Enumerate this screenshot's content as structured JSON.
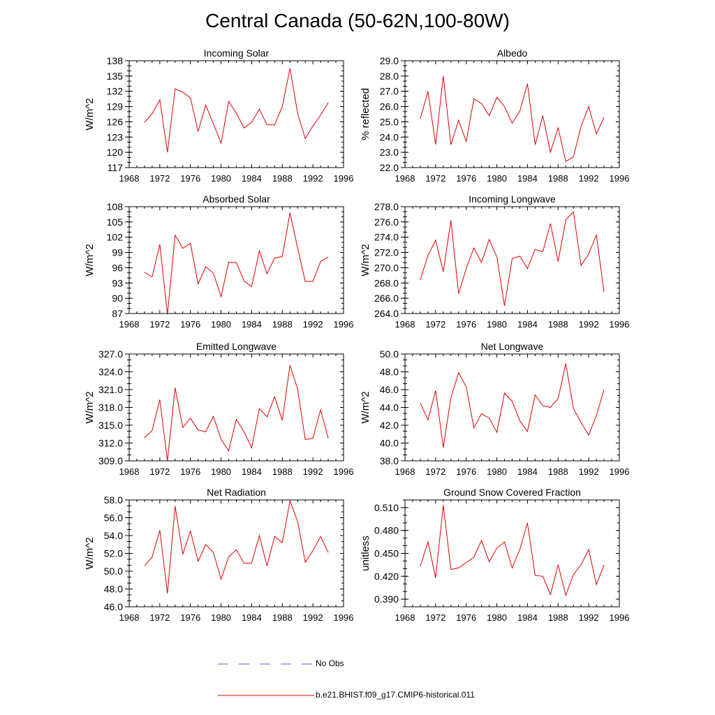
{
  "title": "Central Canada (50-62N,100-80W)",
  "legend": [
    {
      "label": "No Obs",
      "color": "#5a5ad8",
      "style": "dashed"
    },
    {
      "label": "b.e21.BHIST.f09_g17.CMIP6-historical.011",
      "color": "#e00000",
      "style": "solid"
    }
  ],
  "chart_data": [
    {
      "type": "line",
      "title": "Incoming Solar",
      "ylabel": "W/m^2",
      "xlim": [
        1968,
        1996
      ],
      "xticks": [
        "1968",
        "1972",
        "1976",
        "1980",
        "1984",
        "1988",
        "1992",
        "1996"
      ],
      "ylim": [
        117,
        138
      ],
      "yticks": [
        "117",
        "120",
        "123",
        "126",
        "129",
        "132",
        "135",
        "138"
      ],
      "series": [
        {
          "color": "#e00000",
          "x": [
            1970,
            1971,
            1972,
            1973,
            1974,
            1975,
            1976,
            1977,
            1978,
            1979,
            1980,
            1981,
            1982,
            1983,
            1984,
            1985,
            1986,
            1987,
            1988,
            1989,
            1990,
            1991,
            1992,
            1993,
            1994
          ],
          "y": [
            125.9,
            127.6,
            130.3,
            120.0,
            132.5,
            131.8,
            130.7,
            124.1,
            129.3,
            125.6,
            121.8,
            130.0,
            127.7,
            124.8,
            125.9,
            128.5,
            125.4,
            125.4,
            129.0,
            136.5,
            127.7,
            122.7,
            125.2,
            127.3,
            129.8
          ]
        }
      ]
    },
    {
      "type": "line",
      "title": "Albedo",
      "ylabel": "% reflected",
      "xlim": [
        1968,
        1996
      ],
      "xticks": [
        "1968",
        "1972",
        "1976",
        "1980",
        "1984",
        "1988",
        "1992",
        "1996"
      ],
      "ylim": [
        22.0,
        29.0
      ],
      "yticks": [
        "22.0",
        "23.0",
        "24.0",
        "25.0",
        "26.0",
        "27.0",
        "28.0",
        "29.0"
      ],
      "series": [
        {
          "color": "#e00000",
          "x": [
            1970,
            1971,
            1972,
            1973,
            1974,
            1975,
            1976,
            1977,
            1978,
            1979,
            1980,
            1981,
            1982,
            1983,
            1984,
            1985,
            1986,
            1987,
            1988,
            1989,
            1990,
            1991,
            1992,
            1993,
            1994
          ],
          "y": [
            25.2,
            27.0,
            23.5,
            28.0,
            23.5,
            25.1,
            23.7,
            26.5,
            26.2,
            25.4,
            26.6,
            26.0,
            24.9,
            25.7,
            27.5,
            23.5,
            25.4,
            23.0,
            24.6,
            22.4,
            22.7,
            24.7,
            26.0,
            24.2,
            25.3
          ]
        }
      ]
    },
    {
      "type": "line",
      "title": "Absorbed Solar",
      "ylabel": "W/m^2",
      "xlim": [
        1968,
        1996
      ],
      "xticks": [
        "1968",
        "1972",
        "1976",
        "1980",
        "1984",
        "1988",
        "1992",
        "1996"
      ],
      "ylim": [
        87,
        108
      ],
      "yticks": [
        "87",
        "90",
        "93",
        "96",
        "99",
        "102",
        "105",
        "108"
      ],
      "series": [
        {
          "color": "#e00000",
          "x": [
            1970,
            1971,
            1972,
            1973,
            1974,
            1975,
            1976,
            1977,
            1978,
            1979,
            1980,
            1981,
            1982,
            1983,
            1984,
            1985,
            1986,
            1987,
            1988,
            1989,
            1990,
            1991,
            1992,
            1993,
            1994
          ],
          "y": [
            95.1,
            94.2,
            100.6,
            86.8,
            102.4,
            99.8,
            100.8,
            92.8,
            96.2,
            94.9,
            90.3,
            97.1,
            97.0,
            93.4,
            92.3,
            99.3,
            94.8,
            97.9,
            98.2,
            106.8,
            99.9,
            93.3,
            93.3,
            97.2,
            98.1
          ]
        }
      ]
    },
    {
      "type": "line",
      "title": "Incoming Longwave",
      "ylabel": "W/m^2",
      "xlim": [
        1968,
        1996
      ],
      "xticks": [
        "1968",
        "1972",
        "1976",
        "1980",
        "1984",
        "1988",
        "1992",
        "1996"
      ],
      "ylim": [
        264.0,
        278.0
      ],
      "yticks": [
        "264.0",
        "266.0",
        "268.0",
        "270.0",
        "272.0",
        "274.0",
        "276.0",
        "278.0"
      ],
      "series": [
        {
          "color": "#e00000",
          "x": [
            1970,
            1971,
            1972,
            1973,
            1974,
            1975,
            1976,
            1977,
            1978,
            1979,
            1980,
            1981,
            1982,
            1983,
            1984,
            1985,
            1986,
            1987,
            1988,
            1989,
            1990,
            1991,
            1992,
            1993,
            1994
          ],
          "y": [
            268.4,
            271.6,
            273.6,
            269.5,
            276.2,
            266.6,
            269.9,
            272.6,
            270.7,
            273.7,
            271.4,
            265.0,
            271.2,
            271.5,
            269.9,
            272.4,
            272.1,
            275.8,
            270.8,
            276.3,
            277.3,
            270.3,
            271.8,
            274.3,
            266.8
          ]
        }
      ]
    },
    {
      "type": "line",
      "title": "Emitted Longwave",
      "ylabel": "W/m^2",
      "xlim": [
        1968,
        1996
      ],
      "xticks": [
        "1968",
        "1972",
        "1976",
        "1980",
        "1984",
        "1988",
        "1992",
        "1996"
      ],
      "ylim": [
        309.0,
        327.0
      ],
      "yticks": [
        "309.0",
        "312.0",
        "315.0",
        "318.0",
        "321.0",
        "324.0",
        "327.0"
      ],
      "series": [
        {
          "color": "#e00000",
          "x": [
            1970,
            1971,
            1972,
            1973,
            1974,
            1975,
            1976,
            1977,
            1978,
            1979,
            1980,
            1981,
            1982,
            1983,
            1984,
            1985,
            1986,
            1987,
            1988,
            1989,
            1990,
            1991,
            1992,
            1993,
            1994
          ],
          "y": [
            312.9,
            314.1,
            319.3,
            309.0,
            321.3,
            314.6,
            316.2,
            314.2,
            313.9,
            316.5,
            312.6,
            310.7,
            316.0,
            313.9,
            311.2,
            317.8,
            316.4,
            319.8,
            315.8,
            325.1,
            321.1,
            312.6,
            312.8,
            317.6,
            312.8
          ]
        }
      ]
    },
    {
      "type": "line",
      "title": "Net Longwave",
      "ylabel": "W/m^2",
      "xlim": [
        1968,
        1996
      ],
      "xticks": [
        "1968",
        "1972",
        "1976",
        "1980",
        "1984",
        "1988",
        "1992",
        "1996"
      ],
      "ylim": [
        38.0,
        50.0
      ],
      "yticks": [
        "38.0",
        "40.0",
        "42.0",
        "44.0",
        "46.0",
        "48.0",
        "50.0"
      ],
      "series": [
        {
          "color": "#e00000",
          "x": [
            1970,
            1971,
            1972,
            1973,
            1974,
            1975,
            1976,
            1977,
            1978,
            1979,
            1980,
            1981,
            1982,
            1983,
            1984,
            1985,
            1986,
            1987,
            1988,
            1989,
            1990,
            1991,
            1992,
            1993,
            1994
          ],
          "y": [
            44.5,
            42.6,
            45.9,
            39.5,
            45.1,
            47.9,
            46.3,
            41.7,
            43.3,
            42.8,
            41.2,
            45.6,
            44.7,
            42.5,
            41.3,
            45.4,
            44.2,
            44.0,
            45.0,
            48.9,
            43.9,
            42.3,
            40.9,
            43.1,
            46.0
          ]
        }
      ]
    },
    {
      "type": "line",
      "title": "Net Radiation",
      "ylabel": "W/m^2",
      "xlim": [
        1968,
        1996
      ],
      "xticks": [
        "1968",
        "1972",
        "1976",
        "1980",
        "1984",
        "1988",
        "1992",
        "1996"
      ],
      "ylim": [
        46.0,
        58.0
      ],
      "yticks": [
        "46.0",
        "48.0",
        "50.0",
        "52.0",
        "54.0",
        "56.0",
        "58.0"
      ],
      "series": [
        {
          "color": "#e00000",
          "x": [
            1970,
            1971,
            1972,
            1973,
            1974,
            1975,
            1976,
            1977,
            1978,
            1979,
            1980,
            1981,
            1982,
            1983,
            1984,
            1985,
            1986,
            1987,
            1988,
            1989,
            1990,
            1991,
            1992,
            1993,
            1994
          ],
          "y": [
            50.6,
            51.6,
            54.6,
            47.5,
            57.3,
            51.9,
            54.5,
            51.1,
            53.0,
            52.1,
            49.1,
            51.6,
            52.4,
            50.9,
            50.9,
            54.0,
            50.6,
            53.9,
            53.2,
            57.9,
            55.6,
            51.0,
            52.3,
            53.9,
            52.1
          ]
        }
      ]
    },
    {
      "type": "line",
      "title": "Ground Snow Covered Fraction",
      "ylabel": "unitless",
      "xlim": [
        1968,
        1996
      ],
      "xticks": [
        "1968",
        "1972",
        "1976",
        "1980",
        "1984",
        "1988",
        "1992",
        "1996"
      ],
      "ylim": [
        0.38,
        0.52
      ],
      "yticks": [
        "0.390",
        "0.420",
        "0.450",
        "0.480",
        "0.510"
      ],
      "ytick_values": [
        0.39,
        0.42,
        0.45,
        0.48,
        0.51
      ],
      "series": [
        {
          "color": "#e00000",
          "x": [
            1970,
            1971,
            1972,
            1973,
            1974,
            1975,
            1976,
            1977,
            1978,
            1979,
            1980,
            1981,
            1982,
            1983,
            1984,
            1985,
            1986,
            1987,
            1988,
            1989,
            1990,
            1991,
            1992,
            1993,
            1994
          ],
          "y": [
            0.433,
            0.465,
            0.418,
            0.513,
            0.429,
            0.431,
            0.438,
            0.445,
            0.467,
            0.439,
            0.457,
            0.465,
            0.431,
            0.455,
            0.49,
            0.421,
            0.42,
            0.396,
            0.435,
            0.395,
            0.422,
            0.435,
            0.455,
            0.409,
            0.435
          ]
        }
      ]
    }
  ]
}
